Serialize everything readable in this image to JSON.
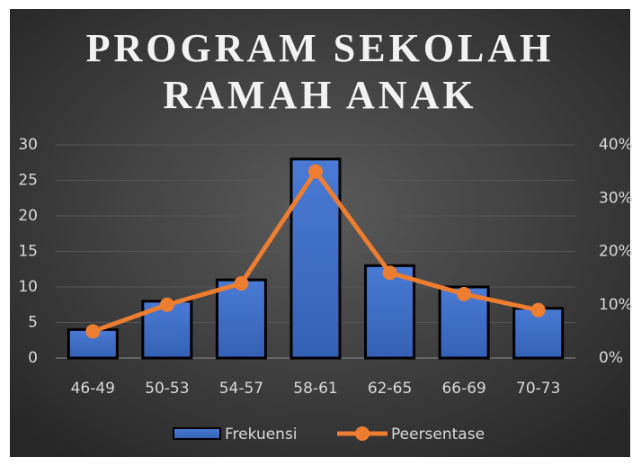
{
  "chart_data": {
    "type": "bar-line",
    "title": "PROGRAM SEKOLAH RAMAH ANAK",
    "categories": [
      "46-49",
      "50-53",
      "54-57",
      "58-61",
      "62-65",
      "66-69",
      "70-73"
    ],
    "series": [
      {
        "name": "Frekuensi",
        "type": "bar",
        "color": "#4472c4",
        "axis": "y",
        "values": [
          4,
          8,
          11,
          28,
          13,
          10,
          7
        ]
      },
      {
        "name": "Peersentase",
        "type": "line",
        "color": "#ed7d31",
        "axis": "y2",
        "values": [
          5,
          10,
          14,
          35,
          16,
          12,
          9
        ]
      }
    ],
    "ylim": [
      0,
      30
    ],
    "yticks": [
      0,
      5,
      10,
      15,
      20,
      25,
      30
    ],
    "y2lim": [
      0,
      40
    ],
    "y2ticks": [
      {
        "value": 0,
        "label": "0%"
      },
      {
        "value": 10,
        "label": "10%"
      },
      {
        "value": 20,
        "label": "20%"
      },
      {
        "value": 30,
        "label": "30%"
      },
      {
        "value": 40,
        "label": "40%"
      }
    ],
    "grid": true,
    "legend": "bottom"
  }
}
